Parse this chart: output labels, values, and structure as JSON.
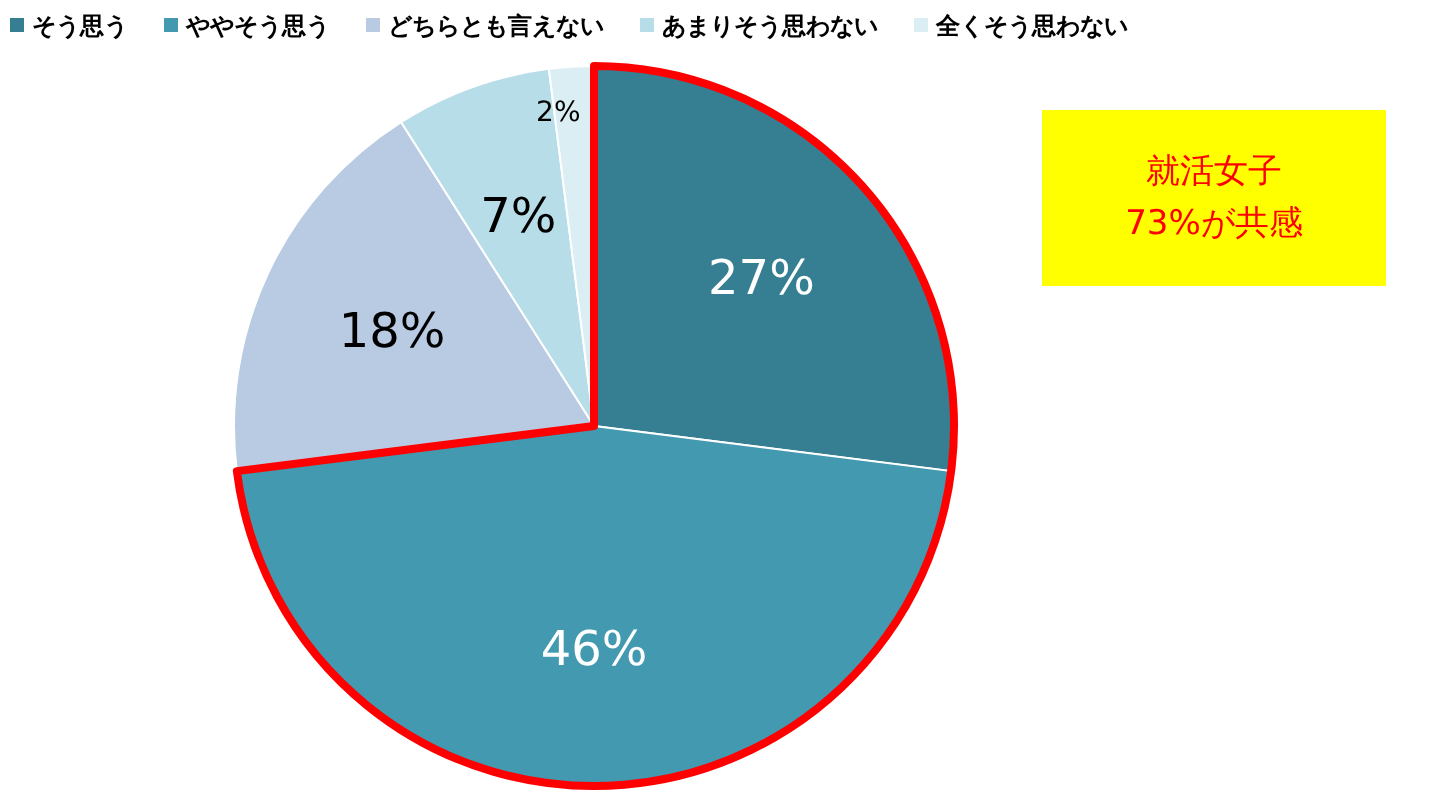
{
  "chart_data": {
    "type": "pie",
    "categories": [
      "そう思う",
      "ややそう思う",
      "どちらとも言えない",
      "あまりそう思わない",
      "全くそう思わない"
    ],
    "values": [
      27,
      46,
      18,
      7,
      2
    ],
    "colors": [
      "#367f93",
      "#4399b0",
      "#b9cbe3",
      "#b7dde8",
      "#dbeef3"
    ],
    "value_labels": [
      "27%",
      "46%",
      "18%",
      "7%",
      "2%"
    ],
    "legend": "top",
    "annotations": [
      "就活女子\n73%が共感"
    ]
  }
}
